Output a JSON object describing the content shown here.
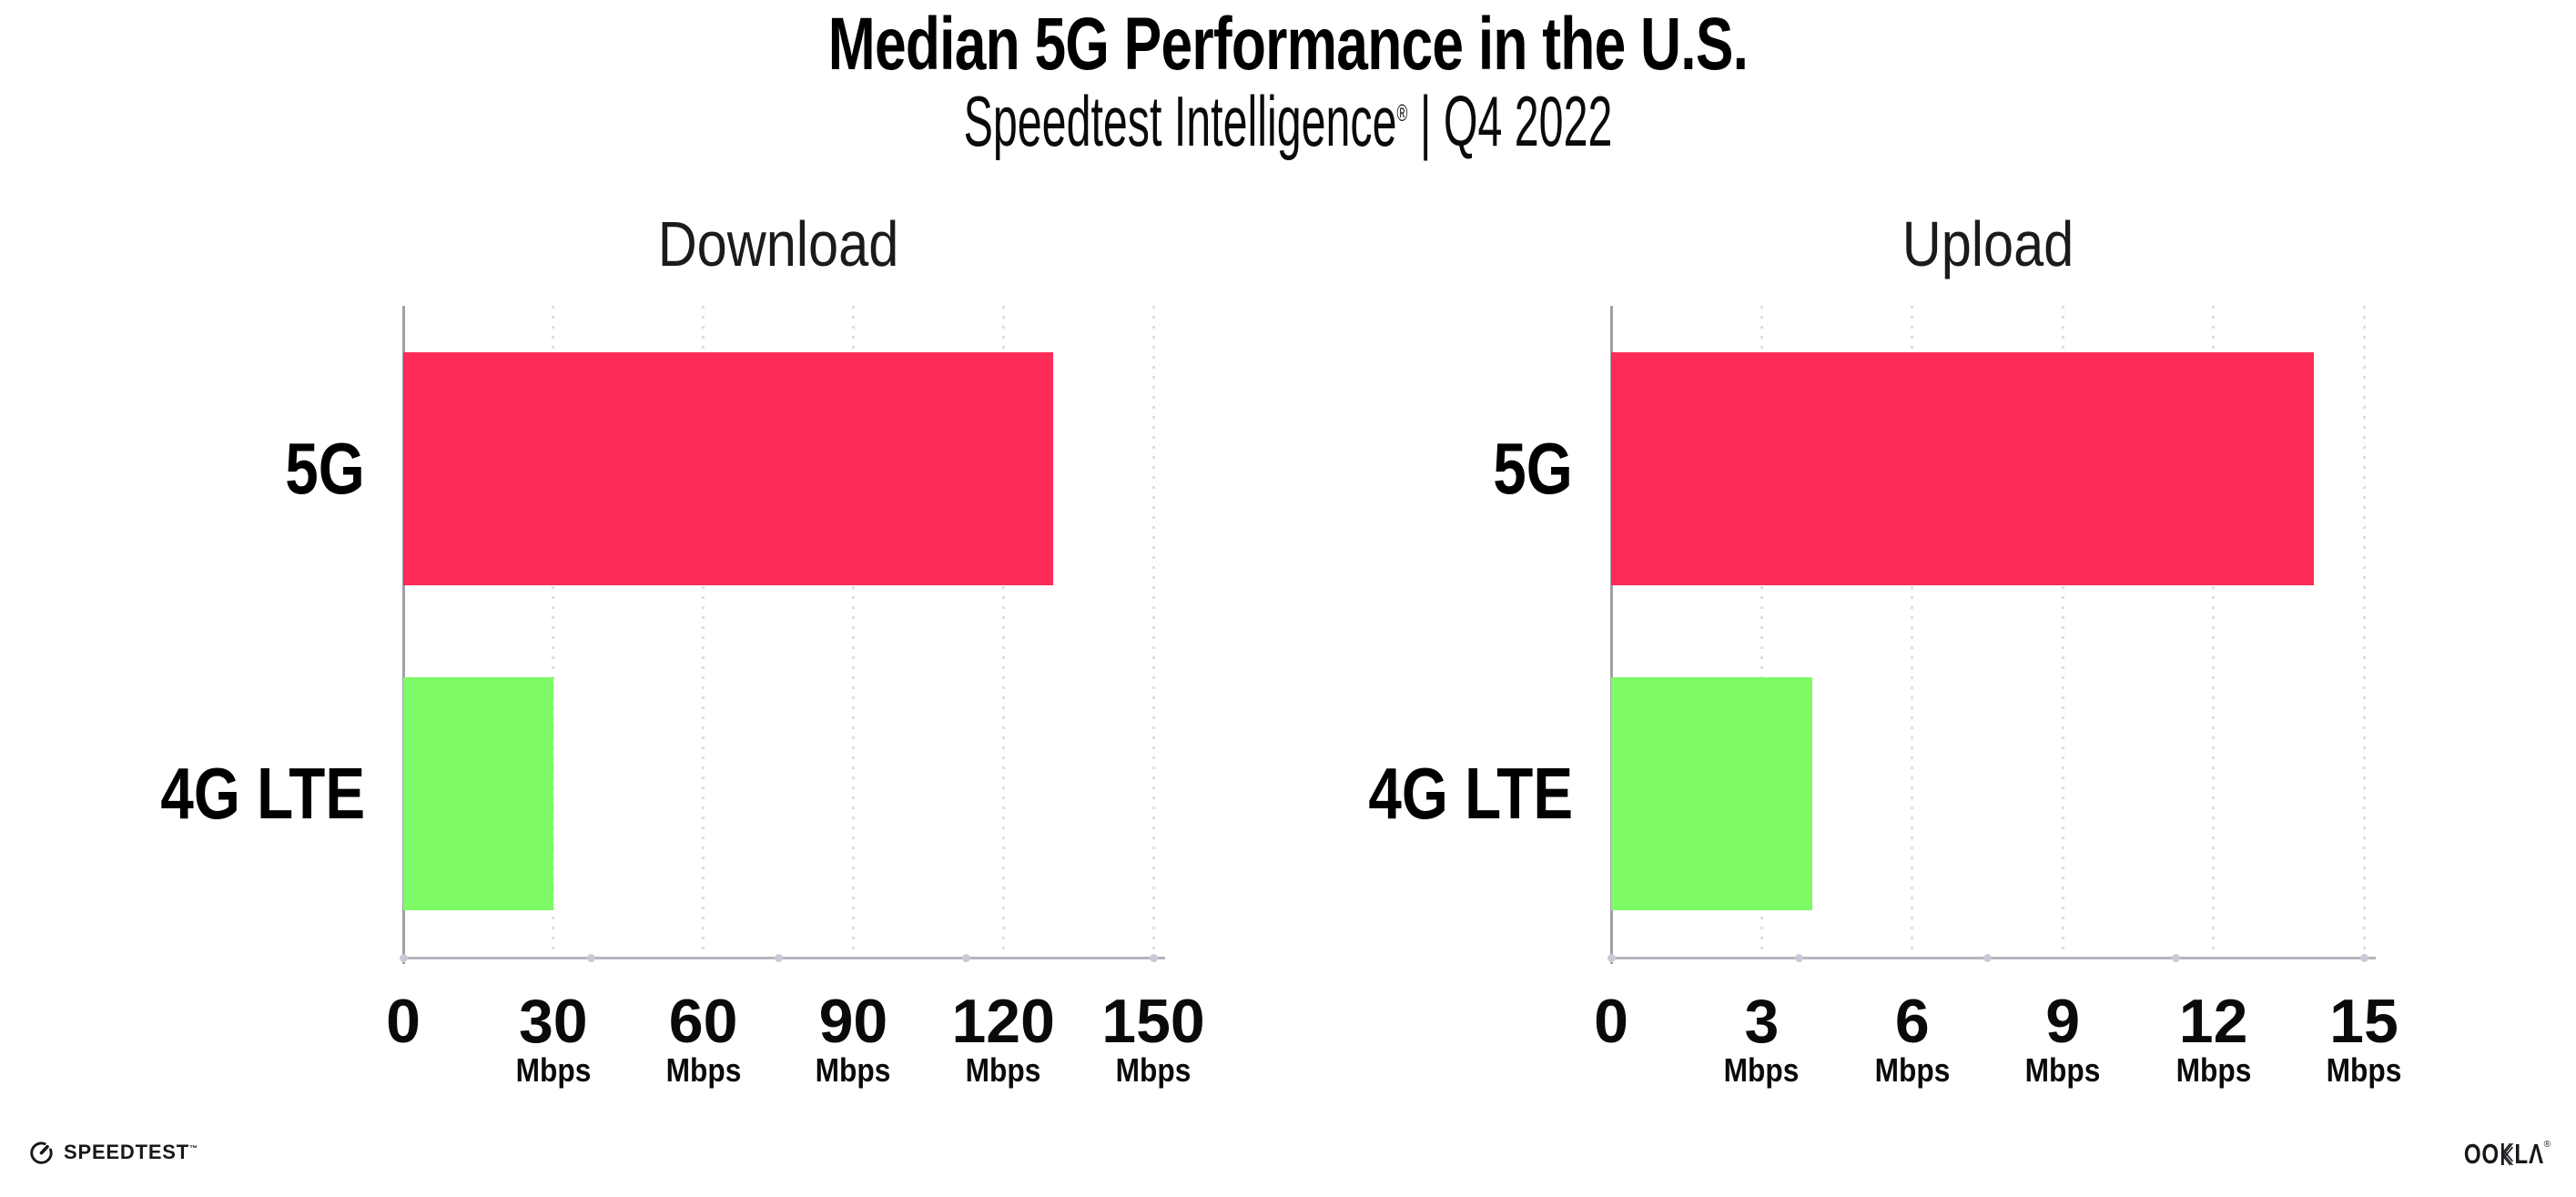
{
  "header": {
    "title": "Median 5G Performance in the U.S.",
    "subtitle_brand": "Speedtest Intelligence",
    "subtitle_reg": "®",
    "subtitle_rest": " | Q4 2022"
  },
  "chart_data": [
    {
      "type": "bar",
      "orientation": "horizontal",
      "title": "Download",
      "categories": [
        "5G",
        "4G LTE"
      ],
      "values": [
        130,
        30
      ],
      "unit": "Mbps",
      "xlim": [
        0,
        150
      ],
      "ticks": [
        0,
        30,
        60,
        90,
        120,
        150
      ],
      "bar_colors": [
        "#fc2c57",
        "#7efb66"
      ],
      "grid": "dotted-vertical",
      "legend": "none"
    },
    {
      "type": "bar",
      "orientation": "horizontal",
      "title": "Upload",
      "categories": [
        "5G",
        "4G LTE"
      ],
      "values": [
        14,
        4
      ],
      "unit": "Mbps",
      "xlim": [
        0,
        15
      ],
      "ticks": [
        0,
        3,
        6,
        9,
        12,
        15
      ],
      "bar_colors": [
        "#fc2c57",
        "#7efb66"
      ],
      "grid": "dotted-vertical",
      "legend": "none"
    }
  ],
  "colors": {
    "bar_5g": "#fc2c57",
    "bar_4g_lte": "#7efb66",
    "axis": "#b5b5bc",
    "y_axis": "#9fa0a8",
    "gridline": "#dcdde9",
    "text": "#000000"
  },
  "footer": {
    "speedtest_label": "SPEEDTEST",
    "speedtest_tm": "™",
    "ookla_left": "OO",
    "ookla_right": "LΛ",
    "ookla_reg": "®"
  }
}
